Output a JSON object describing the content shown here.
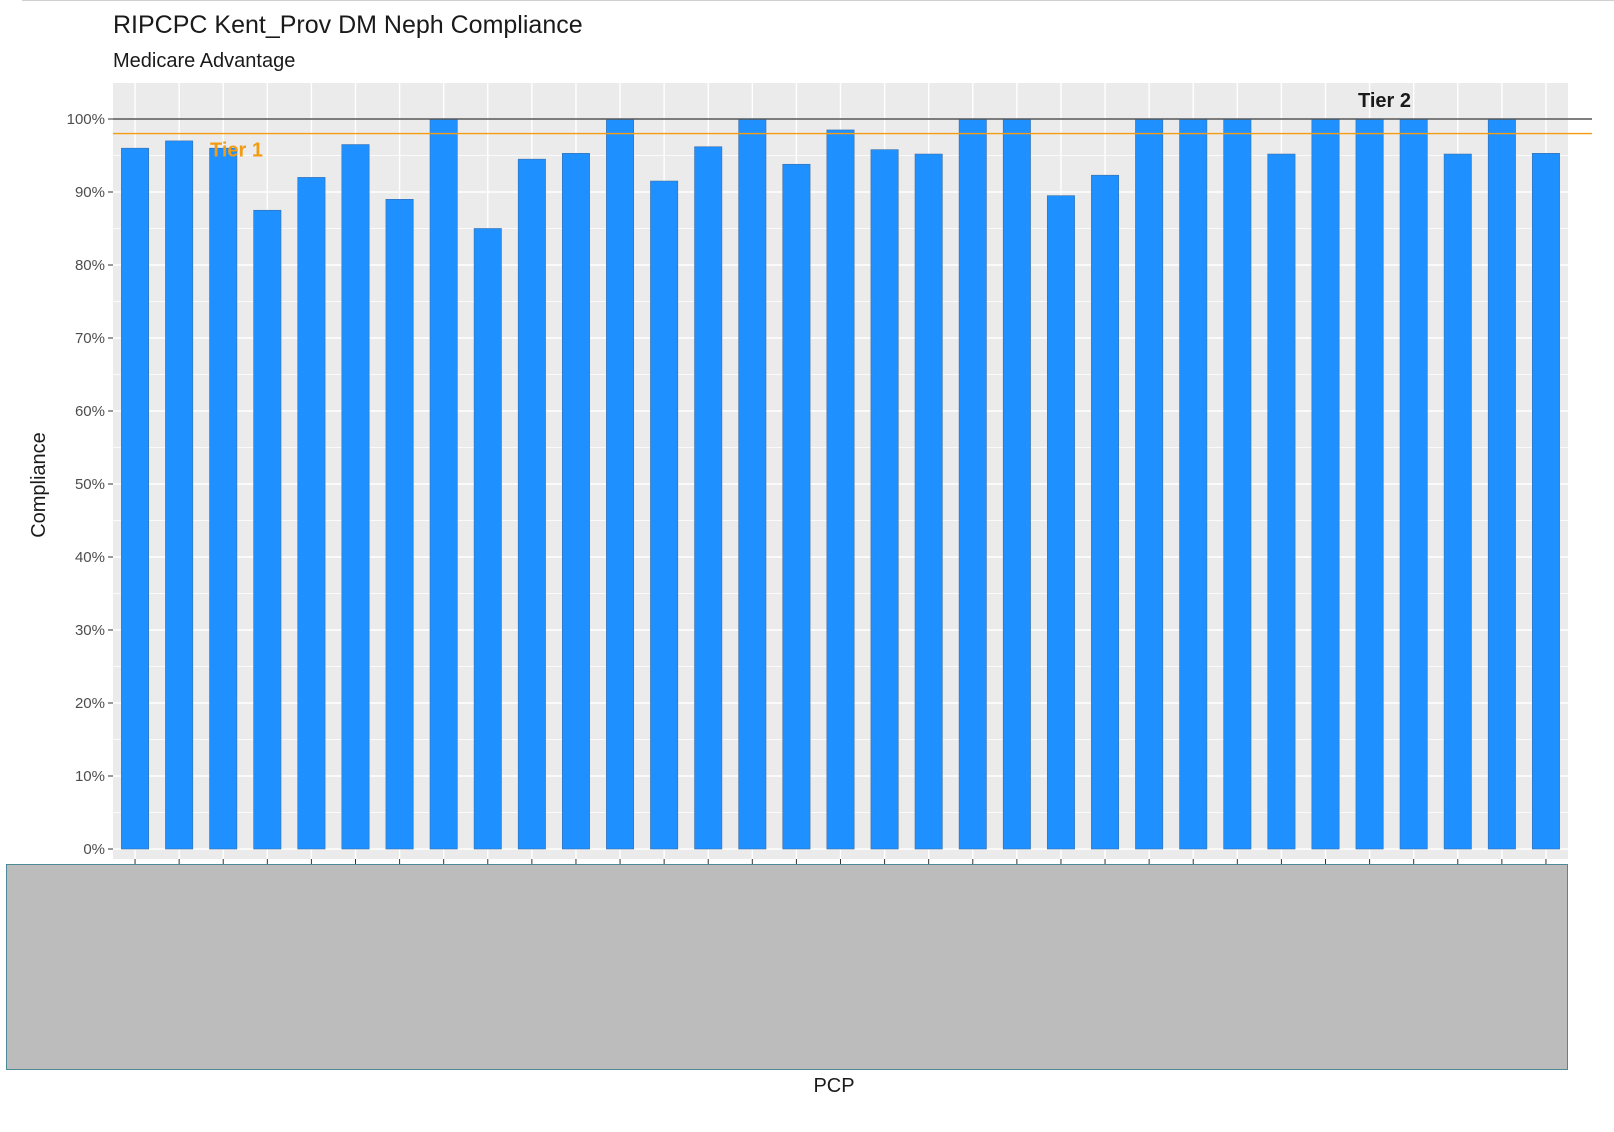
{
  "chart_data": {
    "type": "bar",
    "title": "RIPCPC Kent_Prov DM Neph Compliance",
    "subtitle": "Medicare Advantage",
    "xlabel": "PCP",
    "ylabel": "Compliance",
    "ylim": [
      0,
      1
    ],
    "y_ticks": [
      "0%",
      "10%",
      "20%",
      "30%",
      "40%",
      "50%",
      "60%",
      "70%",
      "80%",
      "90%",
      "100%"
    ],
    "values": [
      0.96,
      0.97,
      0.96,
      0.875,
      0.92,
      0.965,
      0.89,
      1.0,
      0.85,
      0.945,
      0.953,
      1.0,
      0.915,
      0.962,
      1.0,
      0.938,
      0.985,
      0.958,
      0.952,
      1.0,
      1.0,
      0.895,
      0.923,
      1.0,
      1.0,
      1.0,
      0.952,
      1.0,
      1.0,
      1.0,
      0.952,
      1.0,
      0.953
    ],
    "reference_lines": [
      {
        "label": "Tier 1",
        "value": 0.98,
        "color": "#f39c12"
      },
      {
        "label": "Tier 2",
        "value": 1.0,
        "color": "#555555"
      }
    ],
    "bar_color": "#1e90ff",
    "panel_background": "#ebebeb",
    "grid": true,
    "legend": "none"
  }
}
